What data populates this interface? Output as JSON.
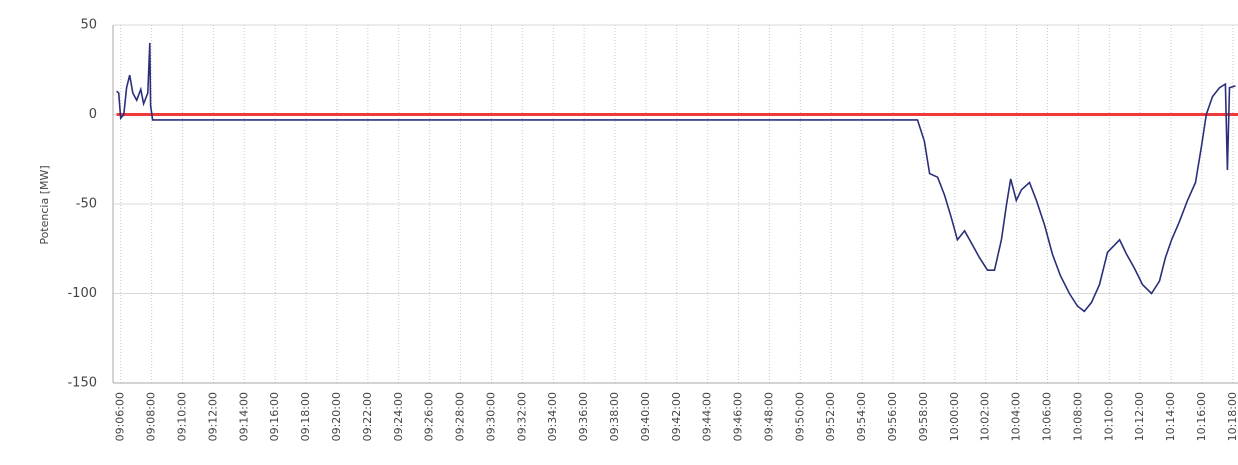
{
  "chart_data": {
    "type": "line",
    "y_label": "Potencia [MW]",
    "xlim": [
      "09:05:30",
      "10:18:20"
    ],
    "xticks": [
      "09:06:00",
      "09:08:00",
      "09:10:00",
      "09:12:00",
      "09:14:00",
      "09:16:00",
      "09:18:00",
      "09:20:00",
      "09:22:00",
      "09:24:00",
      "09:26:00",
      "09:28:00",
      "09:30:00",
      "09:32:00",
      "09:34:00",
      "09:36:00",
      "09:38:00",
      "09:40:00",
      "09:42:00",
      "09:44:00",
      "09:46:00",
      "09:48:00",
      "09:50:00",
      "09:52:00",
      "09:54:00",
      "09:56:00",
      "09:58:00",
      "10:00:00",
      "10:02:00",
      "10:04:00",
      "10:06:00",
      "10:08:00",
      "10:10:00",
      "10:12:00",
      "10:14:00",
      "10:16:00",
      "10:18:00"
    ],
    "ylim": [
      -150,
      50
    ],
    "yticks": [
      -150,
      -100,
      -50,
      0,
      50
    ],
    "grid": true,
    "series": [
      {
        "color": "#2b2f7a",
        "x": [
          "09:05:44",
          "09:05:52",
          "09:06:00",
          "09:06:12",
          "09:06:23",
          "09:06:35",
          "09:06:47",
          "09:07:02",
          "09:07:18",
          "09:07:29",
          "09:07:45",
          "09:07:53",
          "09:07:56",
          "09:08:04",
          "09:57:35",
          "09:58:02",
          "09:58:22",
          "09:58:53",
          "09:59:20",
          "09:59:47",
          "10:00:10",
          "10:00:38",
          "10:01:05",
          "10:01:36",
          "10:02:07",
          "10:02:34",
          "10:03:01",
          "10:03:21",
          "10:03:37",
          "10:03:59",
          "10:04:19",
          "10:04:50",
          "10:05:17",
          "10:05:49",
          "10:06:19",
          "10:06:50",
          "10:07:25",
          "10:07:56",
          "10:08:23",
          "10:08:51",
          "10:09:22",
          "10:09:53",
          "10:10:20",
          "10:10:40",
          "10:11:07",
          "10:11:38",
          "10:12:09",
          "10:12:44",
          "10:13:15",
          "10:13:38",
          "10:14:02",
          "10:14:32",
          "10:15:04",
          "10:15:35",
          "10:15:58",
          "10:16:17",
          "10:16:41",
          "10:17:08",
          "10:17:31",
          "10:17:39",
          "10:17:47",
          "10:18:10"
        ],
        "values": [
          13,
          12,
          -2,
          0,
          15,
          22,
          12,
          8,
          14,
          6,
          12,
          40,
          5,
          -3,
          -3,
          -15,
          -33,
          -35,
          -45,
          -58,
          -70,
          -65,
          -72,
          -80,
          -87,
          -87,
          -70,
          -50,
          -36,
          -48,
          -42,
          -38,
          -48,
          -62,
          -78,
          -90,
          -100,
          -107,
          -110,
          -105,
          -95,
          -77,
          -73,
          -70,
          -78,
          -86,
          -95,
          -100,
          -93,
          -80,
          -70,
          -60,
          -48,
          -38,
          -18,
          0,
          10,
          15,
          17,
          -31,
          15,
          16
        ]
      },
      {
        "color": "#f03a3a",
        "x": [
          "09:05:44",
          "10:18:20"
        ],
        "values": [
          0,
          0
        ]
      }
    ]
  }
}
